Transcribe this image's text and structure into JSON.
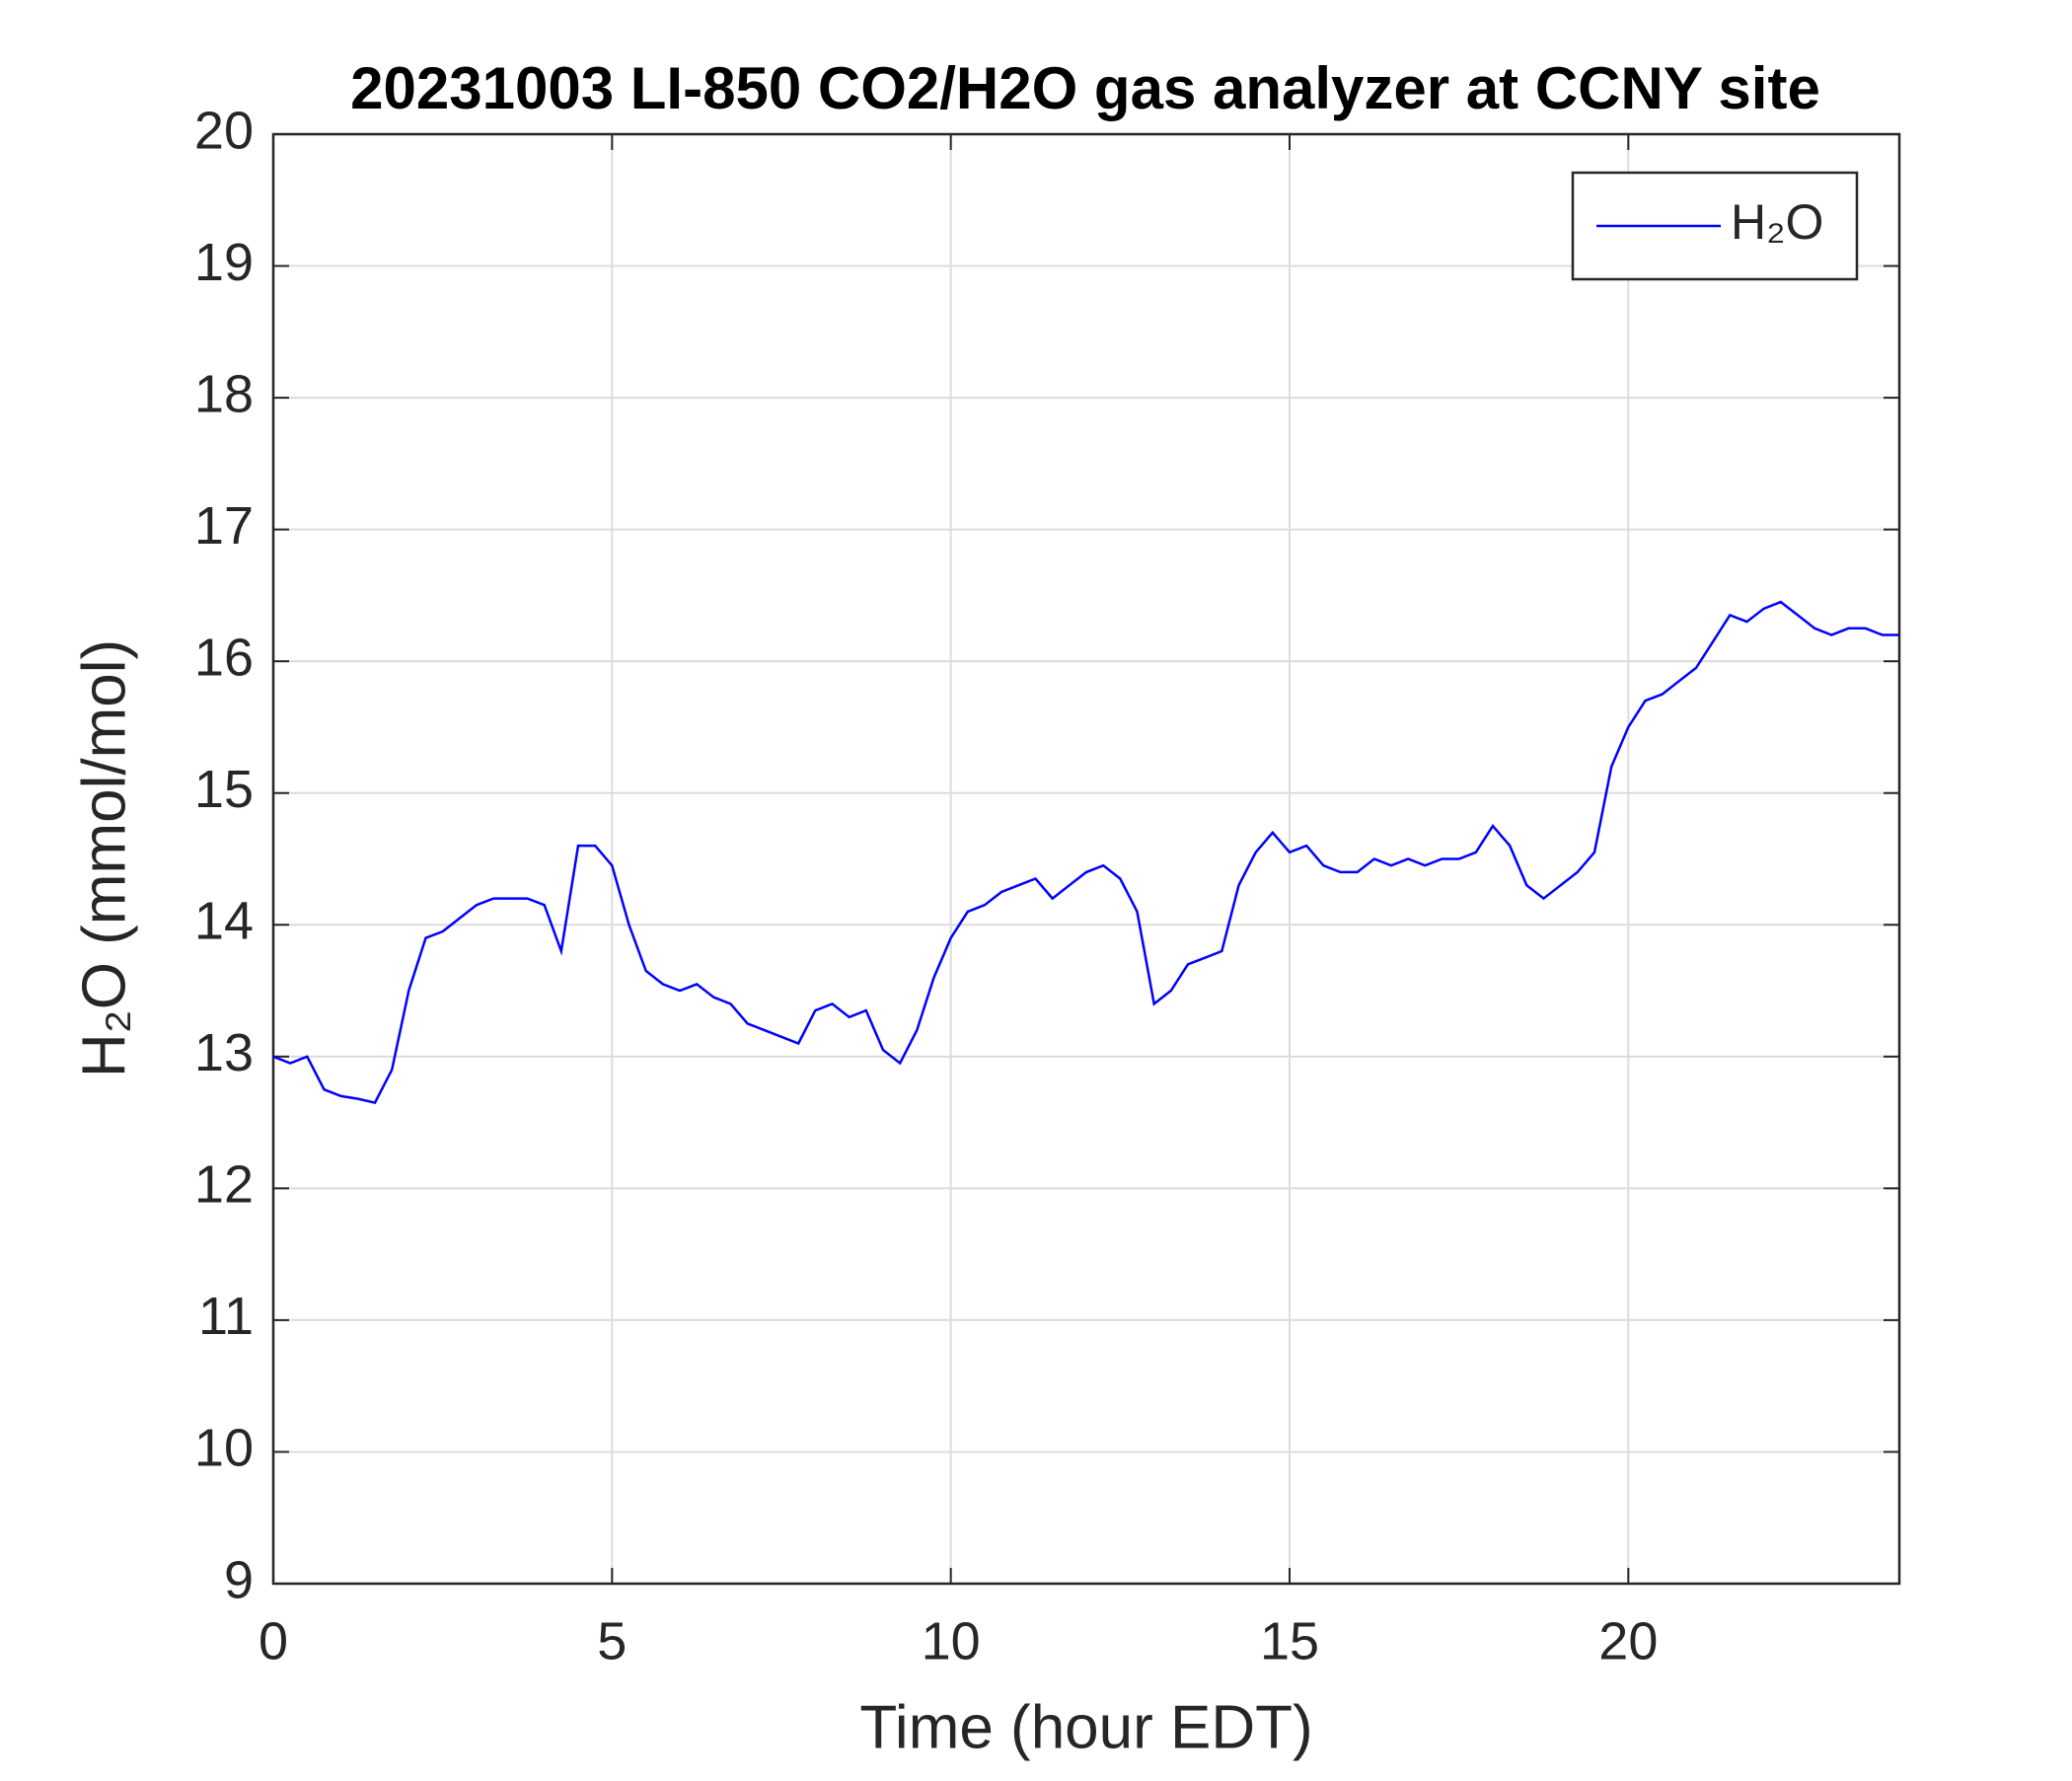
{
  "chart_data": {
    "type": "line",
    "title": "20231003 LI-850 CO2/H2O gas analyzer at CCNY site",
    "x_label": "Time (hour EDT)",
    "y_label": "H₂O (mmol/mol)",
    "x": [
      0,
      0.25,
      0.5,
      0.75,
      1,
      1.25,
      1.5,
      1.75,
      2,
      2.25,
      2.5,
      2.75,
      3,
      3.25,
      3.5,
      3.75,
      4,
      4.25,
      4.5,
      4.75,
      5,
      5.25,
      5.5,
      5.75,
      6,
      6.25,
      6.5,
      6.75,
      7,
      7.25,
      7.5,
      7.75,
      8,
      8.25,
      8.5,
      8.75,
      9,
      9.25,
      9.5,
      9.75,
      10,
      10.25,
      10.5,
      10.75,
      11,
      11.25,
      11.5,
      11.75,
      12,
      12.25,
      12.5,
      12.75,
      13,
      13.25,
      13.5,
      13.75,
      14,
      14.25,
      14.5,
      14.75,
      15,
      15.25,
      15.5,
      15.75,
      16,
      16.25,
      16.5,
      16.75,
      17,
      17.25,
      17.5,
      17.75,
      18,
      18.25,
      18.5,
      18.75,
      19,
      19.25,
      19.5,
      19.75,
      20,
      20.25,
      20.5,
      20.75,
      21,
      21.25,
      21.5,
      21.75,
      22,
      22.25,
      22.5,
      22.75,
      23,
      23.25,
      23.5,
      23.75,
      24
    ],
    "series": [
      {
        "name": "H₂O",
        "color": "#0000ff",
        "values": [
          13.0,
          12.95,
          13.0,
          12.75,
          12.7,
          12.68,
          12.65,
          12.9,
          13.5,
          13.9,
          13.95,
          14.05,
          14.15,
          14.2,
          14.2,
          14.2,
          14.15,
          13.8,
          14.6,
          14.6,
          14.45,
          14.0,
          13.65,
          13.55,
          13.5,
          13.55,
          13.45,
          13.4,
          13.25,
          13.2,
          13.15,
          13.1,
          13.35,
          13.4,
          13.3,
          13.35,
          13.05,
          12.95,
          13.2,
          13.6,
          13.9,
          14.1,
          14.15,
          14.25,
          14.3,
          14.35,
          14.2,
          14.3,
          14.4,
          14.45,
          14.35,
          14.1,
          13.4,
          13.5,
          13.7,
          13.75,
          13.8,
          14.3,
          14.55,
          14.7,
          14.55,
          14.6,
          14.45,
          14.4,
          14.4,
          14.5,
          14.45,
          14.5,
          14.45,
          14.5,
          14.5,
          14.55,
          14.75,
          14.6,
          14.3,
          14.2,
          14.3,
          14.4,
          14.55,
          15.2,
          15.5,
          15.7,
          15.75,
          15.85,
          15.95,
          16.15,
          16.35,
          16.3,
          16.4,
          16.45,
          16.35,
          16.25,
          16.2,
          16.25,
          16.25,
          16.2,
          16.2
        ]
      }
    ],
    "xlim": [
      0,
      24
    ],
    "xticks": [
      0,
      5,
      10,
      15,
      20
    ],
    "ylim": [
      9,
      20
    ],
    "yticks": [
      9,
      10,
      11,
      12,
      13,
      14,
      15,
      16,
      17,
      18,
      19,
      20
    ],
    "grid": true,
    "legend": "northeast"
  }
}
